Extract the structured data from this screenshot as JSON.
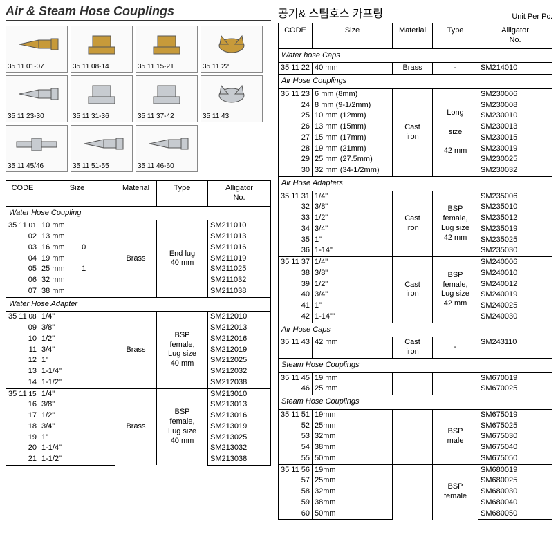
{
  "title_en": "Air & Steam Hose Couplings",
  "title_ko": "공기& 스팀호스 카프링",
  "unit_label": "Unit Per Pc.",
  "columns": [
    "CODE",
    "Size",
    "Material",
    "Type",
    "Alligator\nNo."
  ],
  "thumbs": {
    "row1": [
      "35 11 01-07",
      "35 11 08-14",
      "35 11 15-21",
      "35 11 22"
    ],
    "row2": [
      "35 11 23-30",
      "35 11 31-36",
      "35 11 37-42",
      "35 11 43"
    ],
    "row3": [
      "35 11 45/46",
      "35 11 51-55",
      "35 11 46-60"
    ]
  },
  "thumb_style": {
    "brass_color": "#c79a3a",
    "silver_color": "#c7cbd0",
    "border_color": "#888888",
    "bg_color": "#fafafa"
  },
  "left_sections": [
    {
      "title": "Water Hose Coupling",
      "blocks": [
        {
          "prefix": "35 11",
          "codes": [
            "01",
            "02",
            "03",
            "04",
            "05",
            "06",
            "07"
          ],
          "sizes": [
            "10 mm",
            "13 mm",
            "16 mm        0",
            "19 mm",
            "25 mm        1",
            "32 mm",
            "38 mm"
          ],
          "material": "Brass",
          "type": "End lug\n40 mm",
          "alligator": [
            "SM211010",
            "SM211013",
            "SM211016",
            "SM211019",
            "SM211025",
            "SM211032",
            "SM211038"
          ]
        }
      ]
    },
    {
      "title": "Water Hose Adapter",
      "blocks": [
        {
          "prefix": "35 11",
          "codes": [
            "08",
            "09",
            "10",
            "11",
            "12",
            "13",
            "14"
          ],
          "sizes": [
            "1/4\"",
            "3/8\"",
            "1/2\"",
            "3/4\"",
            "1\"",
            "1-1/4\"",
            "1-1/2\""
          ],
          "material": "Brass",
          "type": "BSP\nfemale,\nLug size\n40 mm",
          "alligator": [
            "SM212010",
            "SM212013",
            "SM212016",
            "SM212019",
            "SM212025",
            "SM212032",
            "SM212038"
          ]
        },
        {
          "prefix": "35 11",
          "codes": [
            "15",
            "16",
            "17",
            "18",
            "19",
            "20",
            "21"
          ],
          "sizes": [
            "1/4\"",
            "3/8\"",
            "1/2\"",
            "3/4\"",
            "1\"",
            "1-1/4\"",
            "1-1/2\""
          ],
          "material": "Brass",
          "type": "BSP\nfemale,\nLug size\n40 mm",
          "alligator": [
            "SM213010",
            "SM213013",
            "SM213016",
            "SM213019",
            "SM213025",
            "SM213032",
            "SM213038"
          ]
        }
      ]
    }
  ],
  "right_sections": [
    {
      "title": "Water hose Caps",
      "blocks": [
        {
          "prefix": "35 11",
          "codes": [
            "22"
          ],
          "sizes": [
            "40 mm"
          ],
          "material": "Brass",
          "type": "-",
          "alligator": [
            "SM214010"
          ]
        }
      ]
    },
    {
      "title": "Air Hose Couplings",
      "blocks": [
        {
          "prefix": "35 11",
          "codes": [
            "23",
            "24",
            "25",
            "26",
            "27",
            "28",
            "29",
            "30"
          ],
          "sizes": [
            "6 mm (8mm)",
            "8 mm (9-1/2mm)",
            "10 mm (12mm)",
            "13 mm (15mm)",
            "15 mm (17mm)",
            "19 mm (21mm)",
            "25 mm (27.5mm)",
            "32 mm (34-1/2mm)"
          ],
          "material": "Cast\niron",
          "type": "Long\n\nsize\n\n42 mm",
          "alligator": [
            "SM230006",
            "SM230008",
            "SM230010",
            "SM230013",
            "SM230015",
            "SM230019",
            "SM230025",
            "SM230032"
          ]
        }
      ]
    },
    {
      "title": "Air Hose Adapters",
      "blocks": [
        {
          "prefix": "35 11",
          "codes": [
            "31",
            "32",
            "33",
            "34",
            "35",
            "36"
          ],
          "sizes": [
            "1/4\"",
            "3/8\"",
            "1/2\"",
            "3/4\"",
            "1\"",
            "1-14\""
          ],
          "material": "Cast\niron",
          "type": "BSP\nfemale,\nLug size\n42 mm",
          "alligator": [
            "SM235006",
            "SM235010",
            "SM235012",
            "SM235019",
            "SM235025",
            "SM235030"
          ]
        },
        {
          "prefix": "35 11",
          "codes": [
            "37",
            "38",
            "39",
            "40",
            "41",
            "42"
          ],
          "sizes": [
            "1/4\"",
            "3/8\"",
            "1/2\"",
            "3/4\"",
            "1\"",
            "1-14\"\""
          ],
          "material": "Cast\niron",
          "type": "BSP\nfemale,\nLug size\n42 mm",
          "alligator": [
            "SM240006",
            "SM240010",
            "SM240012",
            "SM240019",
            "SM240025",
            "SM240030"
          ]
        }
      ]
    },
    {
      "title": "Air Hose Caps",
      "blocks": [
        {
          "prefix": "35 11",
          "codes": [
            "43"
          ],
          "sizes": [
            "42 mm"
          ],
          "material": "Cast\niron",
          "type": "-",
          "alligator": [
            "SM243110"
          ]
        }
      ]
    },
    {
      "title": "Steam Hose Couplings",
      "blocks": [
        {
          "prefix": "35 11",
          "codes": [
            "45",
            "46"
          ],
          "sizes": [
            "19 mm",
            "25 mm"
          ],
          "material": "",
          "type": "",
          "alligator": [
            "SM670019",
            "SM670025"
          ]
        }
      ]
    },
    {
      "title": "Steam Hose Couplings",
      "blocks": [
        {
          "prefix": "35 11",
          "codes": [
            "51",
            "52",
            "53",
            "54",
            "55"
          ],
          "sizes": [
            "19mm",
            "25mm",
            "32mm",
            "38mm",
            "50mm"
          ],
          "material": "",
          "type": "BSP\nmale",
          "alligator": [
            "SM675019",
            "SM675025",
            "SM675030",
            "SM675040",
            "SM675050"
          ]
        },
        {
          "prefix": "35 11",
          "codes": [
            "56",
            "57",
            "58",
            "59",
            "60"
          ],
          "sizes": [
            "19mm",
            "25mm",
            "32mm",
            "38mm",
            "50mm"
          ],
          "material": "",
          "type": "BSP\nfemale",
          "alligator": [
            "SM680019",
            "SM680025",
            "SM680030",
            "SM680040",
            "SM680050"
          ]
        }
      ]
    }
  ]
}
